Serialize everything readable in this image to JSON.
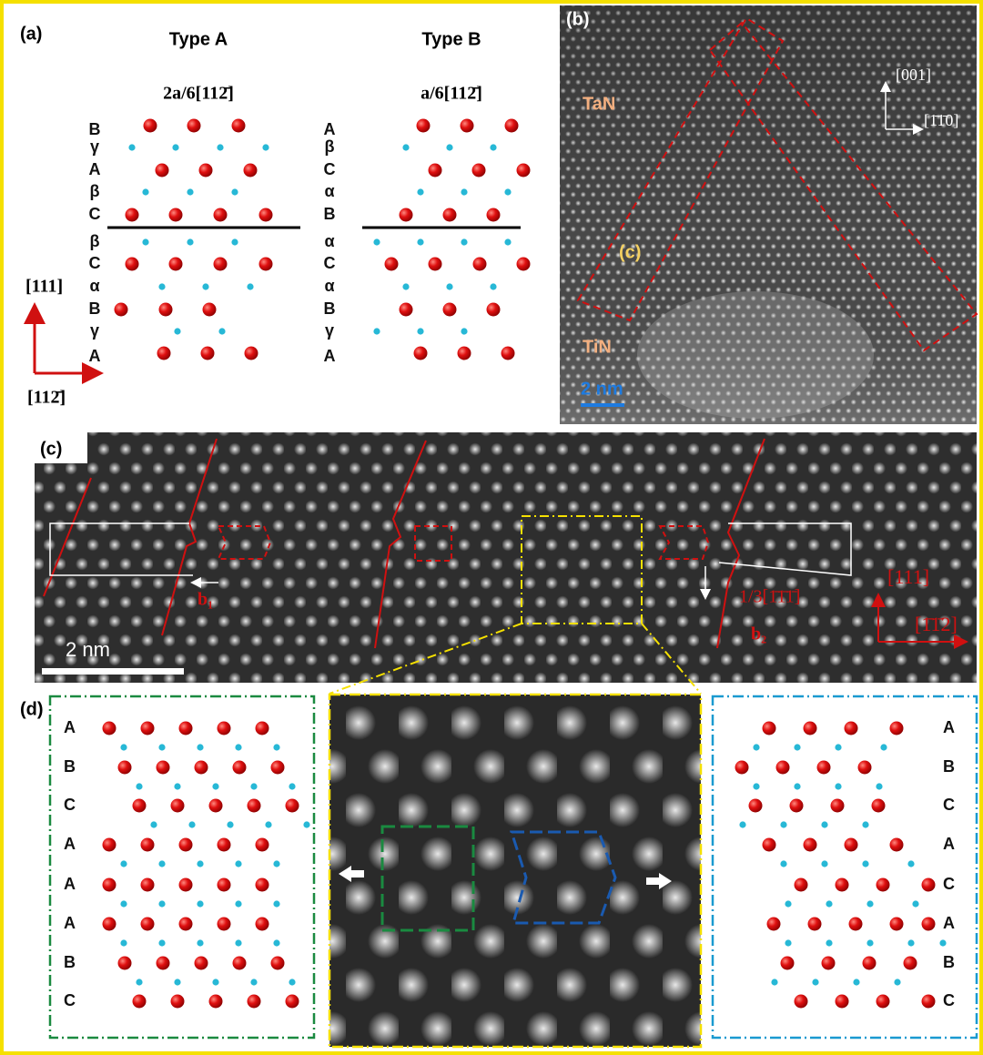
{
  "panel_a": {
    "label": "(a)",
    "type_a": {
      "title": "Type A",
      "vector": "2a/6[112̄]",
      "layers": [
        "B",
        "γ",
        "A",
        "β",
        "C",
        "β",
        "C",
        "α",
        "B",
        "γ",
        "A"
      ]
    },
    "type_b": {
      "title": "Type B",
      "vector": "a/6[112̄]",
      "layers": [
        "A",
        "β",
        "C",
        "α",
        "B",
        "α",
        "C",
        "α",
        "B",
        "γ",
        "A"
      ]
    },
    "axis_up": "[111]",
    "axis_right": "[112̄]"
  },
  "panel_b": {
    "label": "(b)",
    "upper": "TaN",
    "lower": "TiN",
    "inset": "(c)",
    "axis_up": "[001]",
    "axis_right": "[1̄1̄0]",
    "scale": "2 nm"
  },
  "panel_c": {
    "label": "(c)",
    "scale": "2 nm",
    "b1": "b₁",
    "b2": "b₂",
    "burgers": "1/3[1̄1̄1̄]",
    "axis_up": "[111]",
    "axis_right": "[1̄1̄2]"
  },
  "panel_d": {
    "label": "(d)",
    "left_layers": [
      "A",
      "B",
      "C",
      "A",
      "A",
      "A",
      "B",
      "C"
    ],
    "right_layers": [
      "A",
      "B",
      "C",
      "A",
      "C",
      "A",
      "B",
      "C"
    ]
  }
}
